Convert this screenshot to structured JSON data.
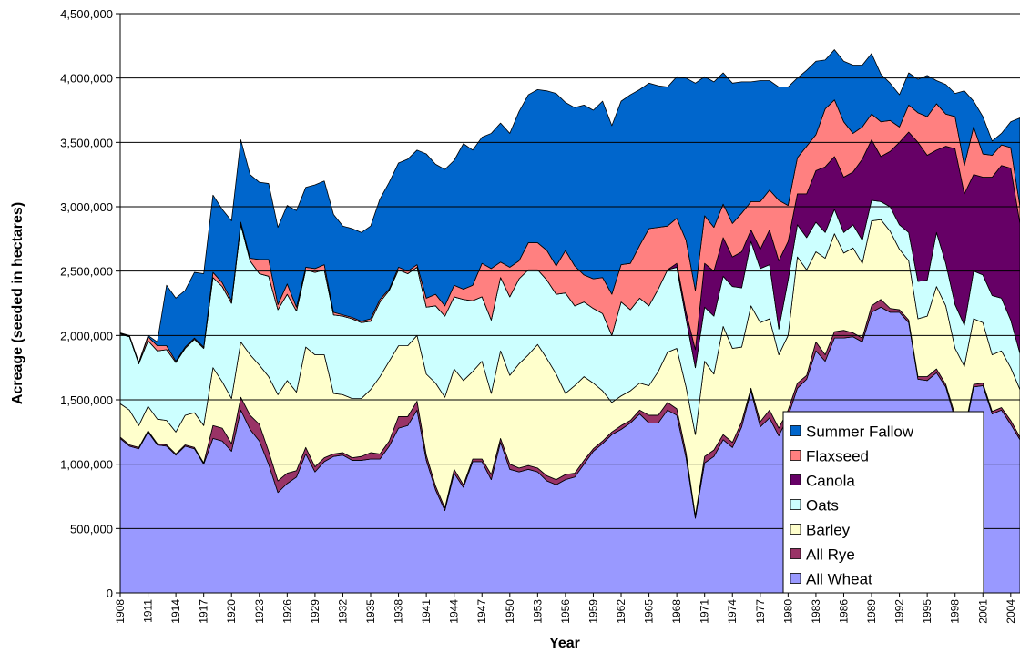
{
  "chart_data": {
    "type": "area",
    "stacked": true,
    "y_label": "Acreage (seeded in hectares)",
    "x_label": "Year",
    "x": [
      1908,
      1909,
      1910,
      1911,
      1912,
      1913,
      1914,
      1915,
      1916,
      1917,
      1918,
      1919,
      1920,
      1921,
      1922,
      1923,
      1924,
      1925,
      1926,
      1927,
      1928,
      1929,
      1930,
      1931,
      1932,
      1933,
      1934,
      1935,
      1936,
      1937,
      1938,
      1939,
      1940,
      1941,
      1942,
      1943,
      1944,
      1945,
      1946,
      1947,
      1948,
      1949,
      1950,
      1951,
      1952,
      1953,
      1954,
      1955,
      1956,
      1957,
      1958,
      1959,
      1960,
      1961,
      1962,
      1963,
      1964,
      1965,
      1966,
      1967,
      1968,
      1969,
      1970,
      1971,
      1972,
      1973,
      1974,
      1975,
      1976,
      1977,
      1978,
      1979,
      1980,
      1981,
      1982,
      1983,
      1984,
      1985,
      1986,
      1987,
      1988,
      1989,
      1990,
      1991,
      1992,
      1993,
      1994,
      1995,
      1996,
      1997,
      1998,
      1999,
      2000,
      2001,
      2002,
      2003,
      2004,
      2005
    ],
    "xlim": [
      1908,
      2005
    ],
    "xticks": [
      1908,
      1911,
      1914,
      1917,
      1920,
      1923,
      1926,
      1929,
      1932,
      1935,
      1938,
      1941,
      1944,
      1947,
      1950,
      1953,
      1956,
      1959,
      1962,
      1965,
      1968,
      1971,
      1974,
      1977,
      1980,
      1983,
      1986,
      1989,
      1992,
      1995,
      1998,
      2001,
      2004
    ],
    "ylim": [
      0,
      4500000
    ],
    "yticks": [
      0,
      {
        "value": 500000,
        "label": "500,000"
      },
      {
        "value": 1000000,
        "label": "1,000,000"
      },
      {
        "value": 1500000,
        "label": "1,500,000"
      },
      {
        "value": 2000000,
        "label": "2,000,000"
      },
      {
        "value": 2500000,
        "label": "2,500,000"
      },
      {
        "value": 3000000,
        "label": "3,000,000"
      },
      {
        "value": 3500000,
        "label": "3,500,000"
      },
      {
        "value": 4000000,
        "label": "4,000,000"
      },
      {
        "value": 4500000,
        "label": "4,500,000"
      }
    ],
    "grid": true,
    "legend": "lower right",
    "series": [
      {
        "name": "All Wheat",
        "color": "#9999ff",
        "values": [
          1200000,
          1140000,
          1120000,
          1250000,
          1150000,
          1140000,
          1070000,
          1140000,
          1120000,
          1000000,
          1200000,
          1180000,
          1100000,
          1420000,
          1270000,
          1180000,
          1000000,
          780000,
          850000,
          900000,
          1080000,
          940000,
          1020000,
          1060000,
          1070000,
          1030000,
          1030000,
          1040000,
          1040000,
          1140000,
          1280000,
          1300000,
          1420000,
          1030000,
          800000,
          640000,
          930000,
          820000,
          1020000,
          1020000,
          880000,
          1170000,
          960000,
          940000,
          960000,
          940000,
          870000,
          840000,
          880000,
          900000,
          1000000,
          1100000,
          1160000,
          1230000,
          1270000,
          1320000,
          1390000,
          1320000,
          1320000,
          1420000,
          1380000,
          1050000,
          580000,
          1010000,
          1060000,
          1190000,
          1130000,
          1290000,
          1570000,
          1290000,
          1360000,
          1220000,
          1370000,
          1590000,
          1660000,
          1880000,
          1800000,
          1980000,
          1980000,
          1990000,
          1950000,
          2180000,
          2220000,
          2180000,
          2180000,
          2100000,
          1660000,
          1650000,
          1710000,
          1600000,
          1350000,
          1230000,
          1600000,
          1610000,
          1390000,
          1420000,
          1310000,
          1190000
        ]
      },
      {
        "name": "All Rye",
        "color": "#993366",
        "values": [
          10000,
          10000,
          10000,
          10000,
          10000,
          10000,
          10000,
          10000,
          10000,
          10000,
          100000,
          100000,
          60000,
          100000,
          110000,
          130000,
          100000,
          90000,
          80000,
          50000,
          50000,
          40000,
          30000,
          20000,
          20000,
          20000,
          30000,
          50000,
          40000,
          40000,
          90000,
          70000,
          70000,
          40000,
          30000,
          20000,
          30000,
          20000,
          20000,
          20000,
          40000,
          30000,
          40000,
          30000,
          30000,
          30000,
          40000,
          40000,
          40000,
          30000,
          30000,
          20000,
          20000,
          20000,
          30000,
          20000,
          30000,
          60000,
          60000,
          60000,
          50000,
          40000,
          20000,
          50000,
          50000,
          40000,
          40000,
          40000,
          20000,
          40000,
          60000,
          60000,
          50000,
          40000,
          30000,
          70000,
          50000,
          50000,
          60000,
          30000,
          30000,
          50000,
          60000,
          30000,
          20000,
          20000,
          20000,
          30000,
          30000,
          20000,
          30000,
          30000,
          20000,
          20000,
          20000,
          20000,
          30000,
          20000
        ]
      },
      {
        "name": "Barley",
        "color": "#ffffcc",
        "values": [
          260000,
          270000,
          170000,
          190000,
          190000,
          190000,
          170000,
          230000,
          270000,
          290000,
          450000,
          360000,
          350000,
          430000,
          470000,
          460000,
          580000,
          670000,
          720000,
          610000,
          780000,
          870000,
          800000,
          470000,
          450000,
          460000,
          450000,
          490000,
          600000,
          620000,
          550000,
          550000,
          510000,
          630000,
          800000,
          860000,
          780000,
          810000,
          680000,
          760000,
          630000,
          680000,
          690000,
          810000,
          860000,
          960000,
          910000,
          820000,
          630000,
          680000,
          650000,
          510000,
          390000,
          230000,
          230000,
          230000,
          210000,
          230000,
          340000,
          390000,
          470000,
          510000,
          630000,
          740000,
          590000,
          840000,
          730000,
          580000,
          640000,
          770000,
          710000,
          570000,
          580000,
          980000,
          820000,
          700000,
          750000,
          760000,
          600000,
          660000,
          580000,
          660000,
          620000,
          600000,
          470000,
          460000,
          450000,
          470000,
          640000,
          610000,
          520000,
          500000,
          510000,
          470000,
          440000,
          440000,
          410000,
          370000
        ]
      },
      {
        "name": "Oats",
        "color": "#ccffff",
        "values": [
          540000,
          570000,
          480000,
          510000,
          530000,
          550000,
          540000,
          520000,
          570000,
          600000,
          700000,
          740000,
          740000,
          910000,
          730000,
          710000,
          780000,
          660000,
          670000,
          630000,
          600000,
          640000,
          660000,
          610000,
          610000,
          620000,
          590000,
          530000,
          580000,
          550000,
          590000,
          560000,
          530000,
          520000,
          600000,
          630000,
          560000,
          630000,
          550000,
          500000,
          570000,
          570000,
          610000,
          660000,
          660000,
          580000,
          610000,
          620000,
          780000,
          620000,
          580000,
          580000,
          600000,
          520000,
          730000,
          630000,
          660000,
          620000,
          640000,
          640000,
          630000,
          530000,
          520000,
          420000,
          450000,
          390000,
          480000,
          460000,
          500000,
          420000,
          420000,
          200000,
          430000,
          250000,
          250000,
          230000,
          200000,
          190000,
          160000,
          180000,
          180000,
          160000,
          140000,
          190000,
          190000,
          220000,
          290000,
          280000,
          420000,
          330000,
          340000,
          320000,
          370000,
          370000,
          460000,
          410000,
          370000,
          280000
        ]
      },
      {
        "name": "Canola",
        "color": "#660066",
        "values": [
          0,
          0,
          0,
          0,
          0,
          0,
          0,
          0,
          0,
          0,
          0,
          0,
          0,
          0,
          0,
          0,
          0,
          0,
          0,
          0,
          0,
          0,
          0,
          0,
          0,
          0,
          0,
          0,
          0,
          0,
          0,
          0,
          0,
          0,
          0,
          0,
          0,
          0,
          0,
          0,
          0,
          0,
          0,
          0,
          0,
          0,
          0,
          0,
          0,
          0,
          0,
          0,
          0,
          0,
          0,
          0,
          0,
          0,
          0,
          0,
          30000,
          50000,
          140000,
          340000,
          350000,
          300000,
          230000,
          280000,
          90000,
          150000,
          270000,
          530000,
          300000,
          240000,
          340000,
          400000,
          510000,
          410000,
          430000,
          410000,
          630000,
          470000,
          350000,
          430000,
          640000,
          780000,
          1080000,
          970000,
          640000,
          910000,
          1210000,
          1020000,
          750000,
          760000,
          920000,
          1030000,
          1180000,
          1010000
        ]
      },
      {
        "name": "Flaxseed",
        "color": "#ff8080",
        "values": [
          5000,
          5000,
          10000,
          30000,
          40000,
          30000,
          10000,
          10000,
          10000,
          10000,
          40000,
          30000,
          20000,
          20000,
          20000,
          110000,
          130000,
          40000,
          80000,
          30000,
          20000,
          30000,
          40000,
          20000,
          10000,
          10000,
          10000,
          20000,
          20000,
          10000,
          20000,
          20000,
          20000,
          70000,
          90000,
          80000,
          90000,
          80000,
          120000,
          260000,
          400000,
          120000,
          230000,
          140000,
          210000,
          210000,
          230000,
          220000,
          330000,
          310000,
          210000,
          230000,
          280000,
          320000,
          290000,
          360000,
          410000,
          600000,
          480000,
          340000,
          350000,
          560000,
          460000,
          370000,
          340000,
          260000,
          260000,
          300000,
          220000,
          370000,
          310000,
          470000,
          280000,
          280000,
          370000,
          280000,
          450000,
          440000,
          430000,
          300000,
          250000,
          200000,
          270000,
          240000,
          120000,
          210000,
          230000,
          300000,
          360000,
          250000,
          250000,
          220000,
          370000,
          180000,
          170000,
          160000,
          160000,
          130000
        ]
      },
      {
        "name": "Summer Fallow",
        "color": "#0066cc",
        "values": [
          5000,
          5000,
          0,
          10000,
          30000,
          470000,
          490000,
          440000,
          510000,
          570000,
          600000,
          570000,
          620000,
          640000,
          650000,
          600000,
          590000,
          600000,
          610000,
          750000,
          620000,
          650000,
          650000,
          760000,
          690000,
          690000,
          690000,
          720000,
          780000,
          830000,
          810000,
          870000,
          890000,
          1120000,
          1010000,
          1060000,
          970000,
          1130000,
          1050000,
          980000,
          1050000,
          1080000,
          1040000,
          1160000,
          1150000,
          1190000,
          1240000,
          1340000,
          1150000,
          1230000,
          1320000,
          1310000,
          1370000,
          1310000,
          1270000,
          1310000,
          1210000,
          1130000,
          1100000,
          1080000,
          1100000,
          1260000,
          1610000,
          1080000,
          1130000,
          1020000,
          1090000,
          1020000,
          930000,
          940000,
          850000,
          880000,
          920000,
          620000,
          590000,
          570000,
          380000,
          390000,
          470000,
          530000,
          480000,
          470000,
          370000,
          290000,
          250000,
          250000,
          260000,
          320000,
          180000,
          230000,
          180000,
          580000,
          200000,
          290000,
          110000,
          90000,
          200000,
          690000
        ]
      }
    ]
  }
}
